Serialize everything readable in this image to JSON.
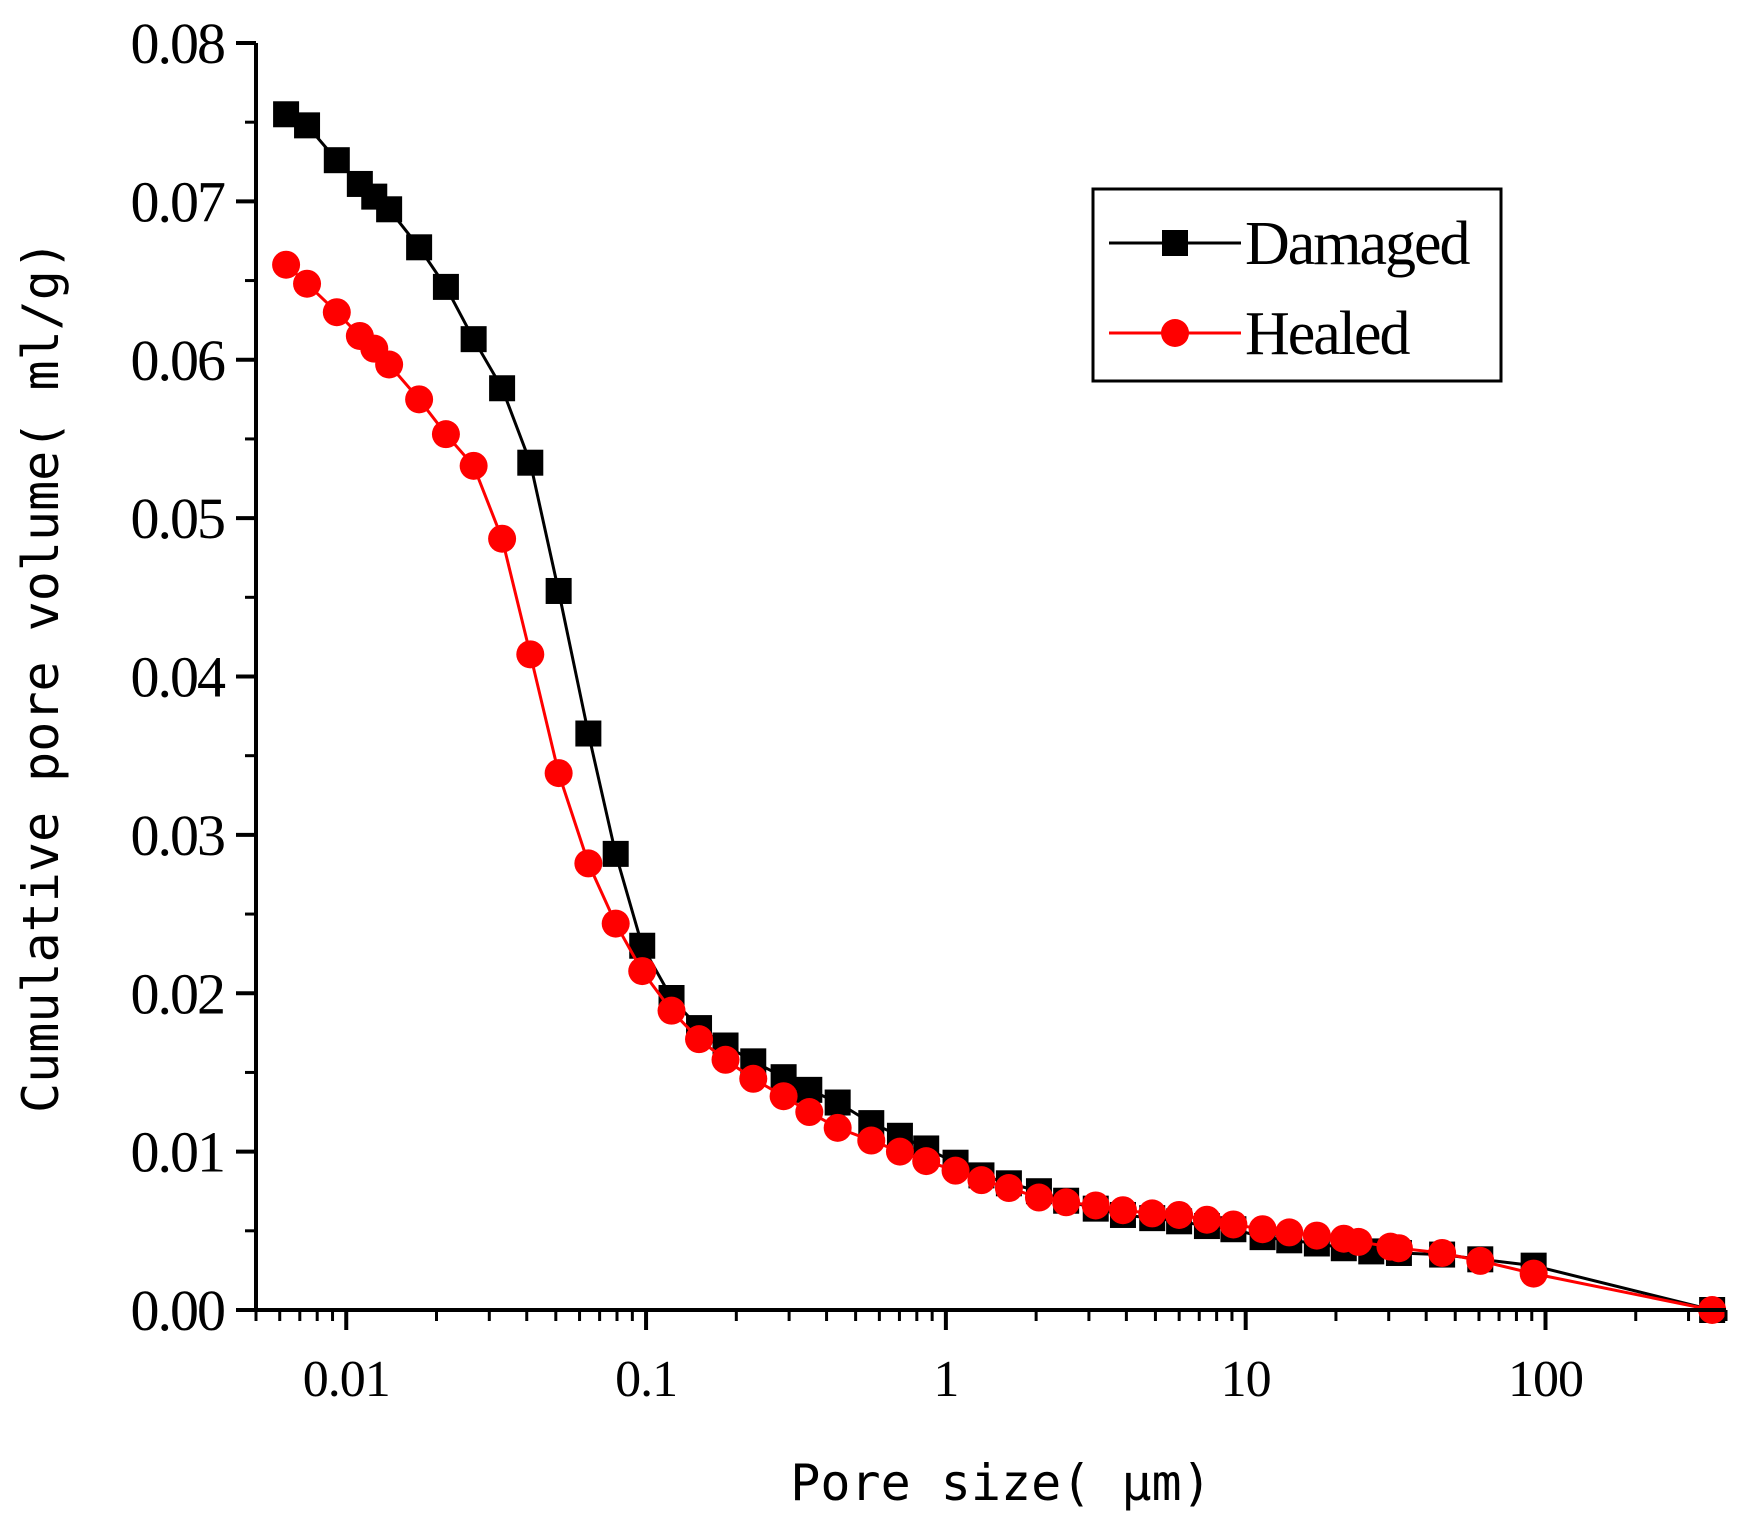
{
  "chart_data": {
    "type": "line",
    "xscale": "log",
    "xlabel": "Pore size( μm)",
    "ylabel": "Cumulative pore volume( ml/g)",
    "xlim": [
      0.005,
      400
    ],
    "ylim": [
      0,
      0.08
    ],
    "x_ticks": [
      0.01,
      0.1,
      1,
      10,
      100
    ],
    "x_tick_labels": [
      "0.01",
      "0.1",
      "1",
      "10",
      "100"
    ],
    "y_ticks": [
      0,
      0.01,
      0.02,
      0.03,
      0.04,
      0.05,
      0.06,
      0.07,
      0.08
    ],
    "y_tick_labels": [
      "0.00",
      "0.01",
      "0.02",
      "0.03",
      "0.04",
      "0.05",
      "0.06",
      "0.07",
      "0.08"
    ],
    "legend_position": "top-right",
    "series": [
      {
        "name": "Damaged",
        "color": "#000000",
        "marker": "square",
        "x": [
          0.0063,
          0.0074,
          0.0093,
          0.0111,
          0.0124,
          0.0139,
          0.0175,
          0.0215,
          0.0266,
          0.0331,
          0.0411,
          0.0511,
          0.0642,
          0.0792,
          0.0971,
          0.1216,
          0.1502,
          0.1841,
          0.2278,
          0.2876,
          0.3503,
          0.4356,
          0.5639,
          0.7027,
          0.8599,
          1.0771,
          1.3143,
          1.6226,
          2.0439,
          2.5186,
          3.1611,
          3.8966,
          4.8779,
          5.9967,
          7.4263,
          9.0987,
          11.386,
          13.974,
          17.275,
          21.243,
          26.232,
          32.442,
          45.2,
          60.6,
          91.3,
          359.6
        ],
        "y": [
          0.0755,
          0.0748,
          0.0726,
          0.0711,
          0.0703,
          0.0695,
          0.0671,
          0.0646,
          0.0613,
          0.0582,
          0.0535,
          0.0454,
          0.0364,
          0.0288,
          0.023,
          0.0197,
          0.0178,
          0.0167,
          0.0157,
          0.0147,
          0.0139,
          0.0131,
          0.0118,
          0.011,
          0.0102,
          0.0093,
          0.0085,
          0.008,
          0.0075,
          0.0069,
          0.0064,
          0.006,
          0.0058,
          0.0056,
          0.0053,
          0.0051,
          0.0046,
          0.0044,
          0.0042,
          0.0039,
          0.0037,
          0.0036,
          0.0035,
          0.0032,
          0.0028,
          0.0
        ]
      },
      {
        "name": "Healed",
        "color": "#ff0000",
        "marker": "circle",
        "x": [
          0.0063,
          0.0074,
          0.0093,
          0.0111,
          0.0124,
          0.0139,
          0.0175,
          0.0215,
          0.0266,
          0.0331,
          0.0411,
          0.0511,
          0.0642,
          0.0792,
          0.0971,
          0.1216,
          0.1502,
          0.1841,
          0.2278,
          0.2876,
          0.3503,
          0.4356,
          0.5639,
          0.7027,
          0.8599,
          1.0771,
          1.3143,
          1.6226,
          2.0439,
          2.5186,
          3.1611,
          3.8966,
          4.8779,
          5.9967,
          7.4263,
          9.0987,
          11.386,
          13.974,
          17.275,
          21.243,
          23.79,
          30.4,
          32.442,
          45.2,
          60.6,
          91.3,
          359.6
        ],
        "y": [
          0.066,
          0.0648,
          0.063,
          0.0615,
          0.0607,
          0.0597,
          0.0575,
          0.0553,
          0.0533,
          0.0487,
          0.0414,
          0.0339,
          0.0282,
          0.0244,
          0.0214,
          0.0189,
          0.0171,
          0.0158,
          0.0146,
          0.0135,
          0.0125,
          0.0115,
          0.0107,
          0.01,
          0.0094,
          0.0088,
          0.0082,
          0.0077,
          0.0071,
          0.0068,
          0.0066,
          0.0063,
          0.0061,
          0.006,
          0.0057,
          0.0054,
          0.0051,
          0.0049,
          0.0047,
          0.0045,
          0.0043,
          0.004,
          0.0039,
          0.0036,
          0.0031,
          0.0023,
          0.0
        ]
      }
    ]
  }
}
